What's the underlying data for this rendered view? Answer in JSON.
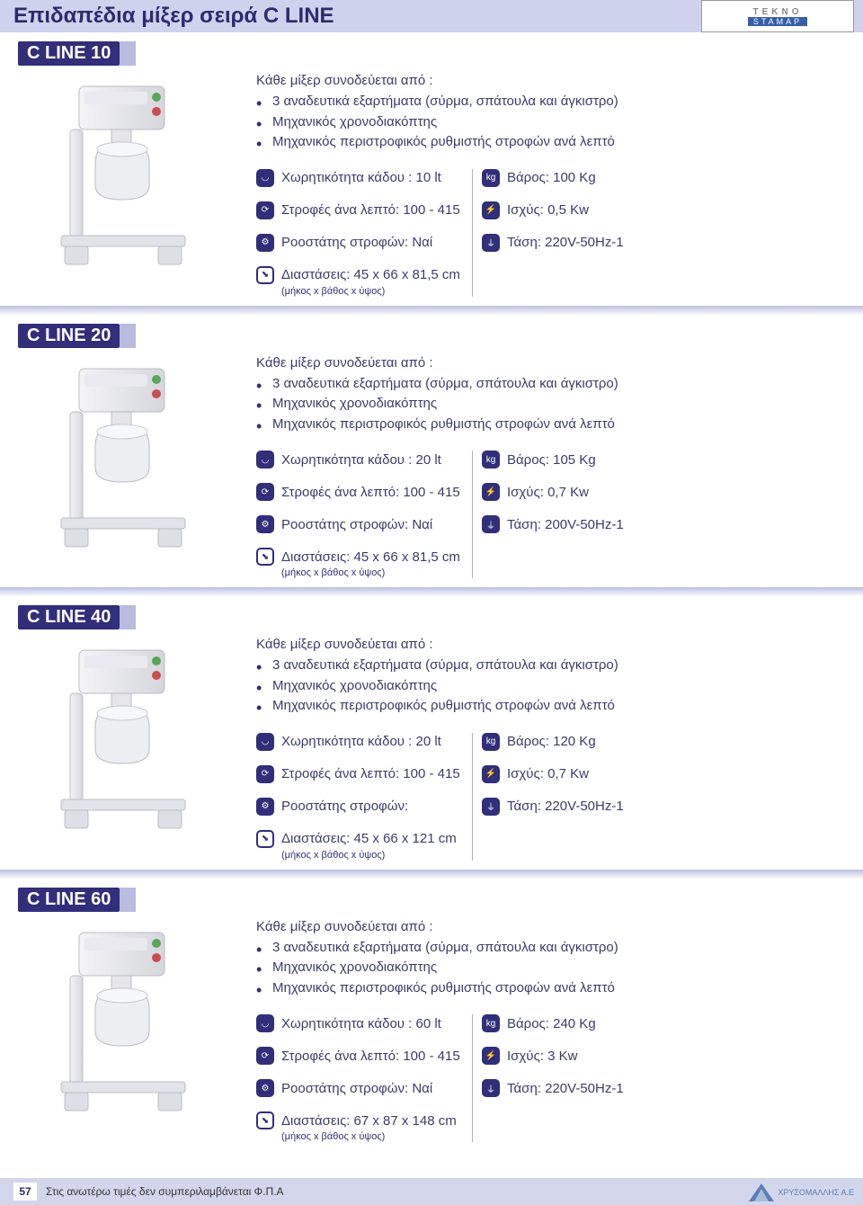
{
  "colors": {
    "header_bg": "#cfd2ec",
    "title_color": "#2b2b6f",
    "tab_bg": "#312e7a",
    "tab_accent": "#b9bbe0",
    "text": "#3b3b6b",
    "icon_bg": "#312e7a",
    "separator_from": "rgba(180,185,225,0.9)",
    "separator_to": "rgba(230,232,245,0.2)",
    "footer_bg": "#d3d5eb"
  },
  "header": {
    "title": "Επιδαπέδια μίξερ σειρά C LINE",
    "brand_line1": "TEKNO",
    "brand_line2": "STAMAP"
  },
  "labels": {
    "intro": "Κάθε μίξερ συνοδεύεται από :",
    "capacity": "Χωρητικότητα κάδου :",
    "rpm": "Στροφές άνα λεπτό:",
    "rheostat": "Ροοστάτης στροφών:",
    "dims": "Διαστάσεις:",
    "dims_sub": "(μήκος x βάθος x ύψος)",
    "weight": "Βάρος:",
    "power": "Ισχύς:",
    "voltage": "Τάση:"
  },
  "bullets": [
    "3 αναδευτικά εξαρτήματα (σύρμα, σπάτουλα και άγκιστρο)",
    "Μηχανικός χρονοδιακόπτης",
    "Μηχανικός περιστροφικός ρυθμιστής στροφών ανά λεπτό"
  ],
  "products": [
    {
      "model": "C LINE 10",
      "capacity": "10 lt",
      "rpm": "100 - 415",
      "rheostat": "Ναί",
      "dims": "45 x 66 x 81,5 cm",
      "weight": "100 Kg",
      "power": "0,5 Kw",
      "voltage": "220V-50Hz-1"
    },
    {
      "model": "C LINE 20",
      "capacity": "20 lt",
      "rpm": "100 - 415",
      "rheostat": "Ναί",
      "dims": "45 x 66 x 81,5 cm",
      "weight": "105 Kg",
      "power": "0,7 Kw",
      "voltage": "200V-50Hz-1"
    },
    {
      "model": "C LINE 40",
      "capacity": "20 lt",
      "rpm": "100 - 415",
      "rheostat": "",
      "dims": "45 x 66 x 121 cm",
      "weight": "120 Kg",
      "power": "0,7 Kw",
      "voltage": "220V-50Hz-1"
    },
    {
      "model": "C LINE 60",
      "capacity": "60 lt",
      "rpm": "100 - 415",
      "rheostat": "Ναί",
      "dims": "67 x 87 x 148 cm",
      "weight": "240 Kg",
      "power": "3 Kw",
      "voltage": "220V-50Hz-1"
    }
  ],
  "footer": {
    "page": "57",
    "note": "Στις ανωτέρω τιμές δεν συμπεριλαμβάνεται Φ.Π.Α",
    "dist_logo": "ΧΡΥΣΟΜΑΛΛΗΣ Α.Ε"
  }
}
